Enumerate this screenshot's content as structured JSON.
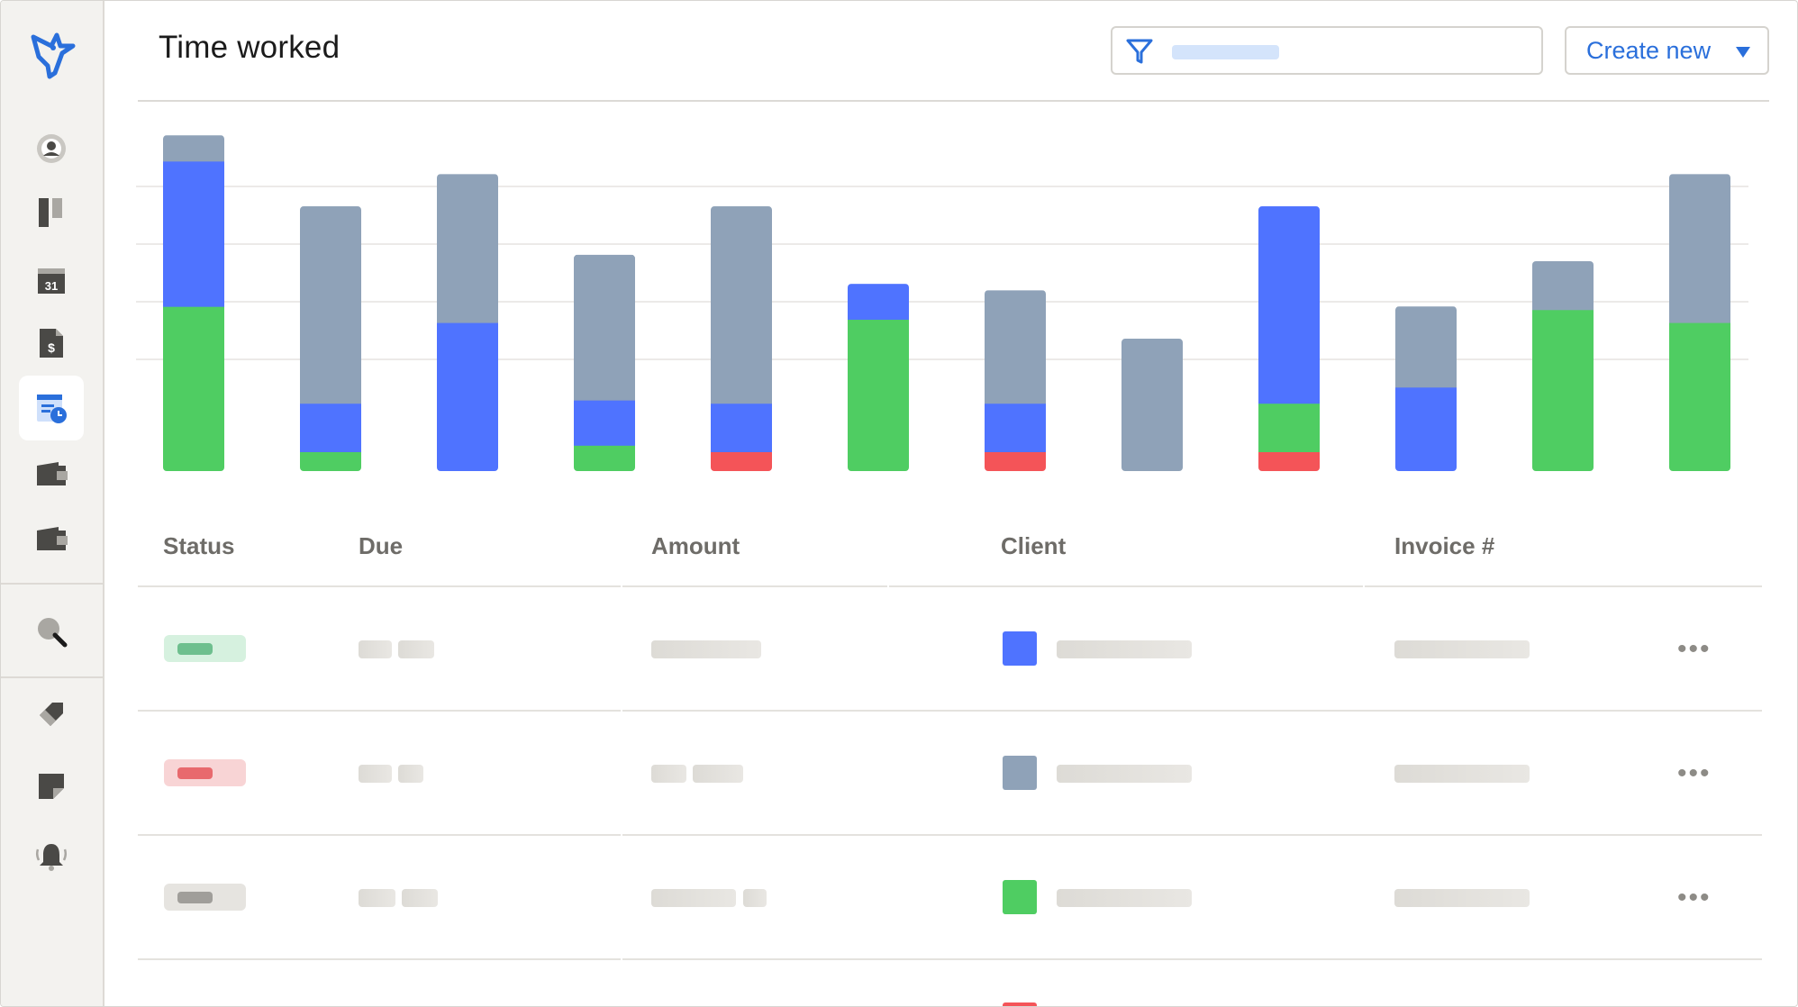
{
  "header": {
    "title": "Time worked",
    "filter_placeholder": "",
    "create_label": "Create new"
  },
  "sidebar": {
    "items": [
      {
        "icon": "bird-logo-icon"
      },
      {
        "icon": "user-circle-icon"
      },
      {
        "icon": "board-icon"
      },
      {
        "icon": "calendar-icon",
        "label": "31"
      },
      {
        "icon": "invoice-dollar-icon",
        "label": "$"
      },
      {
        "icon": "time-tracking-icon",
        "active": true
      },
      {
        "icon": "wallet-icon"
      },
      {
        "icon": "wallet-icon"
      },
      {
        "icon": "search-icon"
      },
      {
        "icon": "tag-icon"
      },
      {
        "icon": "note-icon"
      },
      {
        "icon": "bell-icon"
      }
    ]
  },
  "colors": {
    "blue": "#4f73ff",
    "slate": "#8fa2b8",
    "green": "#4fcd62",
    "red": "#f45458",
    "accent": "#2a6fdb"
  },
  "chart_data": {
    "type": "bar",
    "stacked": true,
    "ylim": [
      0,
      106
    ],
    "grid": true,
    "categories": [
      "",
      "",
      "",
      "",
      "",
      "",
      "",
      "",
      "",
      "",
      "",
      ""
    ],
    "series": [
      {
        "color": "#f45458",
        "values": [
          0,
          0,
          0,
          0,
          6,
          0,
          6,
          0,
          6,
          0,
          0,
          0
        ]
      },
      {
        "color": "#4fcd62",
        "values": [
          51,
          6,
          0,
          8,
          0,
          47,
          0,
          0,
          15,
          0,
          50,
          46
        ]
      },
      {
        "color": "#4f73ff",
        "values": [
          45,
          15,
          46,
          14,
          15,
          11,
          15,
          0,
          61,
          26,
          0,
          0
        ]
      },
      {
        "color": "#8fa2b8",
        "values": [
          8,
          61,
          46,
          45,
          61,
          0,
          35,
          41,
          0,
          25,
          15,
          46
        ]
      }
    ]
  },
  "table": {
    "columns": [
      "Status",
      "Due",
      "Amount",
      "Client",
      "Invoice #"
    ],
    "rows": [
      {
        "status_color": "green",
        "client_color": "#4f73ff"
      },
      {
        "status_color": "red",
        "client_color": "#8fa2b8"
      },
      {
        "status_color": "gray",
        "client_color": "#4fcd62"
      }
    ],
    "more_label": "•••"
  }
}
